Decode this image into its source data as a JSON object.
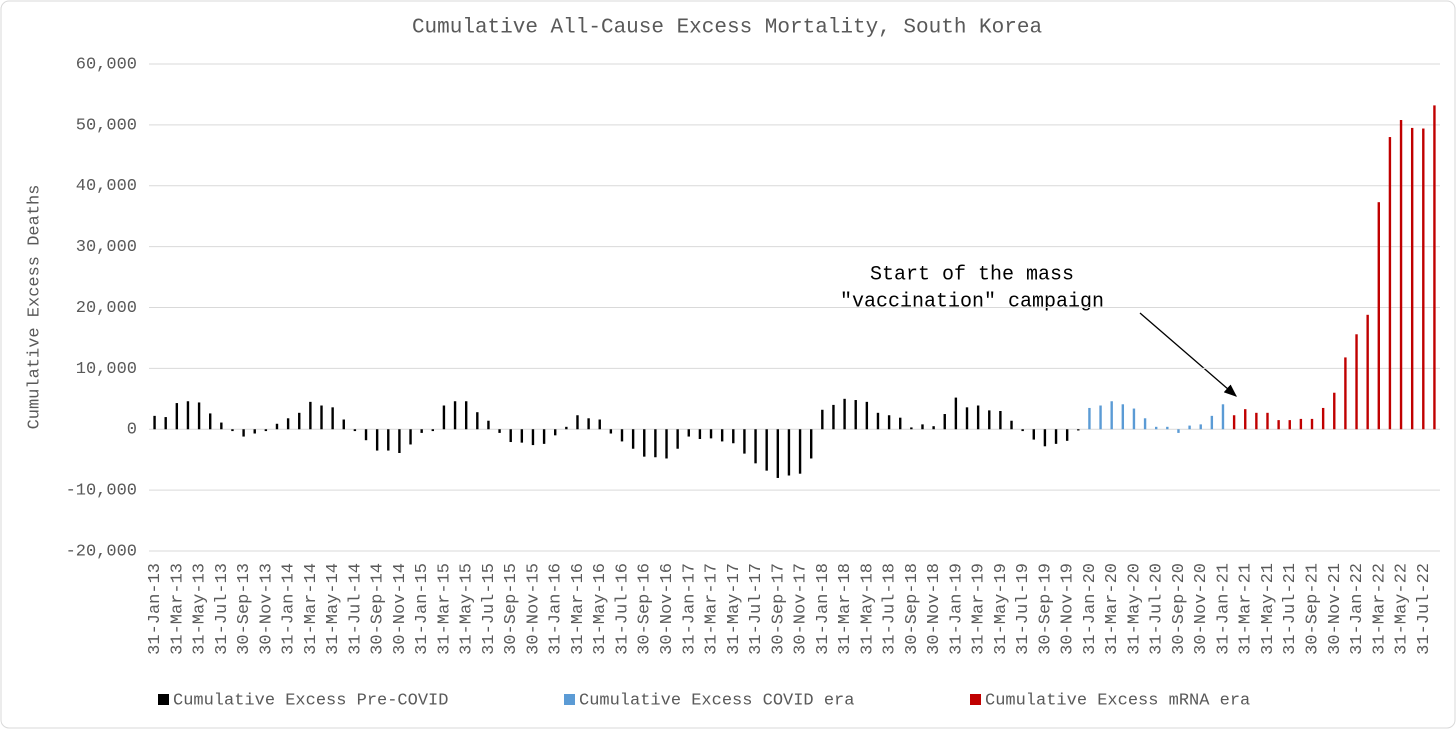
{
  "chart_data": {
    "type": "bar",
    "title": "Cumulative All-Cause Excess Mortality, South Korea",
    "y_label": "Cumulative Excess Deaths",
    "annotation": [
      "Start of the mass",
      "\"vaccination\" campaign"
    ],
    "categories": [
      "31-Jan-13",
      null,
      "31-Mar-13",
      null,
      "31-May-13",
      null,
      "31-Jul-13",
      null,
      "30-Sep-13",
      null,
      "30-Nov-13",
      null,
      "31-Jan-14",
      null,
      "31-Mar-14",
      null,
      "31-May-14",
      null,
      "31-Jul-14",
      null,
      "30-Sep-14",
      null,
      "30-Nov-14",
      null,
      "31-Jan-15",
      null,
      "31-Mar-15",
      null,
      "31-May-15",
      null,
      "31-Jul-15",
      null,
      "30-Sep-15",
      null,
      "30-Nov-15",
      null,
      "31-Jan-16",
      null,
      "31-Mar-16",
      null,
      "31-May-16",
      null,
      "31-Jul-16",
      null,
      "30-Sep-16",
      null,
      "30-Nov-16",
      null,
      "31-Jan-17",
      null,
      "31-Mar-17",
      null,
      "31-May-17",
      null,
      "31-Jul-17",
      null,
      "30-Sep-17",
      null,
      "30-Nov-17",
      null,
      "31-Jan-18",
      null,
      "31-Mar-18",
      null,
      "31-May-18",
      null,
      "31-Jul-18",
      null,
      "30-Sep-18",
      null,
      "30-Nov-18",
      null,
      "31-Jan-19",
      null,
      "31-Mar-19",
      null,
      "31-May-19",
      null,
      "31-Jul-19",
      null,
      "30-Sep-19",
      null,
      "30-Nov-19",
      null,
      "31-Jan-20",
      null,
      "31-Mar-20",
      null,
      "31-May-20",
      null,
      "31-Jul-20",
      null,
      "30-Sep-20",
      null,
      "30-Nov-20",
      null,
      "31-Jan-21",
      null,
      "31-Mar-21",
      null,
      "31-May-21",
      null,
      "31-Jul-21",
      null,
      "30-Sep-21",
      null,
      "30-Nov-21",
      null,
      "31-Jan-22",
      null,
      "31-Mar-22",
      null,
      "31-May-22",
      null,
      "31-Jul-22",
      null
    ],
    "series": [
      {
        "name": "Cumulative Excess Pre-COVID",
        "color": "#000000",
        "values": [
          2200,
          2000,
          4300,
          4600,
          4400,
          2600,
          1100,
          -300,
          -1200,
          -700,
          -300,
          900,
          1800,
          2700,
          4500,
          3900,
          3600,
          1600,
          -300,
          -1800,
          -3500,
          -3500,
          -3900,
          -2500,
          -600,
          -300,
          3900,
          4600,
          4600,
          2800,
          1400,
          -600,
          -2100,
          -2200,
          -2600,
          -2400,
          -1000,
          400,
          2300,
          1800,
          1600,
          -700,
          -2000,
          -3200,
          -4500,
          -4600,
          -4800,
          -3200,
          -1200,
          -1600,
          -1500,
          -2000,
          -2300,
          -4000,
          -5600,
          -6800,
          -8000,
          -7600,
          -7300,
          -4800,
          3200,
          4000,
          5000,
          4800,
          4500,
          2700,
          2300,
          1900,
          300,
          800,
          500,
          2500,
          5200,
          3600,
          3900,
          3100,
          3000,
          1400,
          -300,
          -1700,
          -2800,
          -2400,
          -1900,
          -200,
          null,
          null,
          null,
          null,
          null,
          null,
          null,
          null,
          null,
          null,
          null,
          null,
          null,
          null,
          null,
          null,
          null,
          null,
          null,
          null,
          null,
          null,
          null,
          null,
          null,
          null,
          null,
          null,
          null,
          null,
          null,
          null
        ]
      },
      {
        "name": "Cumulative Excess COVID era",
        "color": "#5b9bd5",
        "values": [
          null,
          null,
          null,
          null,
          null,
          null,
          null,
          null,
          null,
          null,
          null,
          null,
          null,
          null,
          null,
          null,
          null,
          null,
          null,
          null,
          null,
          null,
          null,
          null,
          null,
          null,
          null,
          null,
          null,
          null,
          null,
          null,
          null,
          null,
          null,
          null,
          null,
          null,
          null,
          null,
          null,
          null,
          null,
          null,
          null,
          null,
          null,
          null,
          null,
          null,
          null,
          null,
          null,
          null,
          null,
          null,
          null,
          null,
          null,
          null,
          null,
          null,
          null,
          null,
          null,
          null,
          null,
          null,
          null,
          null,
          null,
          null,
          null,
          null,
          null,
          null,
          null,
          null,
          null,
          null,
          null,
          null,
          null,
          null,
          3500,
          3900,
          4600,
          4100,
          3400,
          1800,
          400,
          400,
          -600,
          600,
          800,
          2200,
          4100,
          null,
          null,
          null,
          null,
          null,
          null,
          null,
          null,
          null,
          null,
          null,
          null,
          null,
          null,
          null,
          null,
          null,
          null,
          null
        ]
      },
      {
        "name": "Cumulative Excess mRNA era",
        "color": "#c00000",
        "values": [
          null,
          null,
          null,
          null,
          null,
          null,
          null,
          null,
          null,
          null,
          null,
          null,
          null,
          null,
          null,
          null,
          null,
          null,
          null,
          null,
          null,
          null,
          null,
          null,
          null,
          null,
          null,
          null,
          null,
          null,
          null,
          null,
          null,
          null,
          null,
          null,
          null,
          null,
          null,
          null,
          null,
          null,
          null,
          null,
          null,
          null,
          null,
          null,
          null,
          null,
          null,
          null,
          null,
          null,
          null,
          null,
          null,
          null,
          null,
          null,
          null,
          null,
          null,
          null,
          null,
          null,
          null,
          null,
          null,
          null,
          null,
          null,
          null,
          null,
          null,
          null,
          null,
          null,
          null,
          null,
          null,
          null,
          null,
          null,
          null,
          null,
          null,
          null,
          null,
          null,
          null,
          null,
          null,
          null,
          null,
          null,
          null,
          2300,
          3300,
          2700,
          2700,
          1500,
          1500,
          1700,
          1700,
          3500,
          6000,
          11800,
          15600,
          18800,
          37300,
          48000,
          50800,
          49500,
          49400,
          53200
        ]
      }
    ],
    "ylim": [
      -20000,
      60000
    ],
    "yticks": [
      {
        "value": -20000,
        "label": "-20,000"
      },
      {
        "value": -10000,
        "label": "-10,000"
      },
      0,
      {
        "value": 10000,
        "label": "10,000"
      },
      {
        "value": 20000,
        "label": "20,000"
      },
      {
        "value": 30000,
        "label": "30,000"
      },
      {
        "value": 40000,
        "label": "40,000"
      },
      {
        "value": 50000,
        "label": "50,000"
      },
      {
        "value": 60000,
        "label": "60,000"
      }
    ],
    "grid": true,
    "legend": "bottom"
  }
}
